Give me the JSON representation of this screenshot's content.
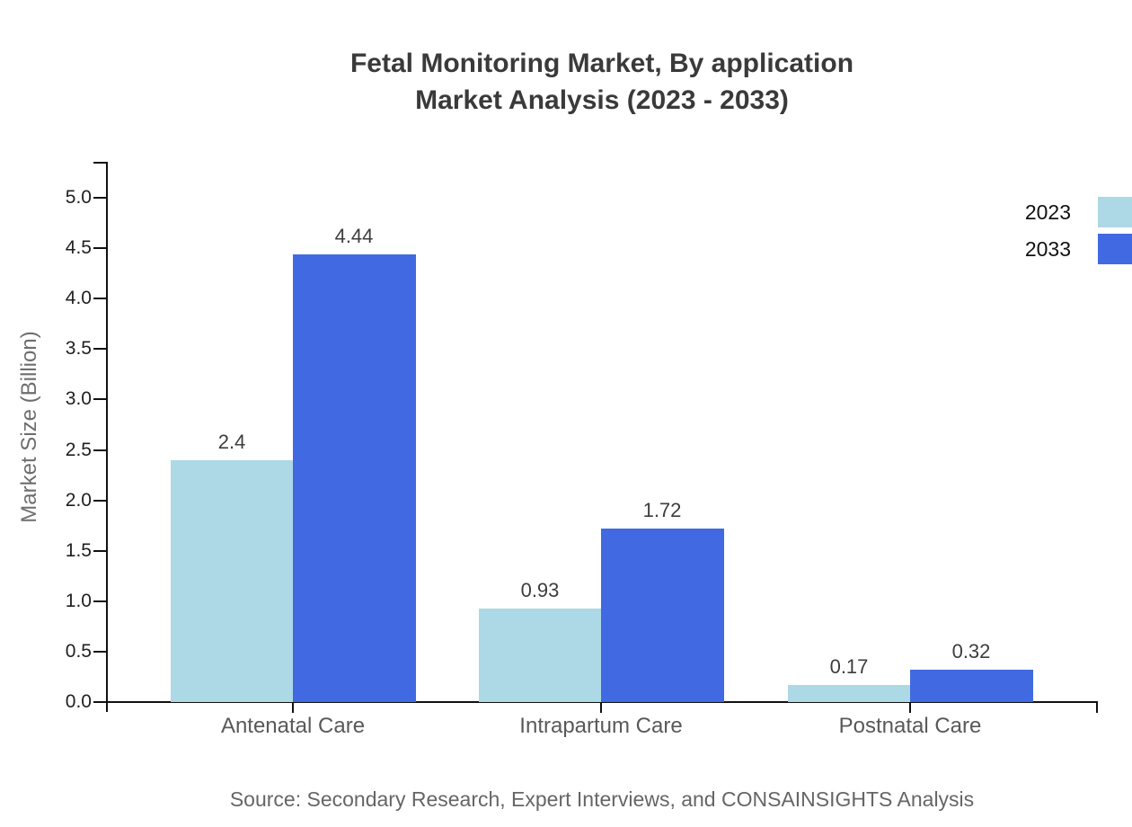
{
  "title": {
    "line1": "Fetal Monitoring Market, By application",
    "line2": "Market Analysis (2023 - 2033)"
  },
  "y_axis": {
    "label": "Market Size (Billion)"
  },
  "source": "Source: Secondary Research, Expert Interviews, and CONSAINSIGHTS Analysis",
  "legend": {
    "items": [
      {
        "label": "2023",
        "color": "#ADD8E6"
      },
      {
        "label": "2033",
        "color": "#4169E1"
      }
    ]
  },
  "chart_data": {
    "type": "bar",
    "title": "Fetal Monitoring Market, By application Market Analysis (2023 - 2033)",
    "categories": [
      "Antenatal Care",
      "Intrapartum Care",
      "Postnatal Care"
    ],
    "series": [
      {
        "name": "2023",
        "color": "#ADD8E6",
        "values": [
          2.4,
          0.93,
          0.17
        ],
        "labels": [
          "2.4",
          "0.93",
          "0.17"
        ]
      },
      {
        "name": "2033",
        "color": "#4169E1",
        "values": [
          4.44,
          1.72,
          0.32
        ],
        "labels": [
          "4.44",
          "1.72",
          "0.32"
        ]
      }
    ],
    "xlabel": "",
    "ylabel": "Market Size (Billion)",
    "ylim": [
      0,
      5.35
    ],
    "ytick_values": [
      0,
      0.5,
      1,
      1.5,
      2,
      2.5,
      3,
      3.5,
      4,
      4.5,
      5
    ],
    "ytick_labels": [
      "0.0",
      "0.5",
      "1.0",
      "1.5",
      "2.0",
      "2.5",
      "3.0",
      "3.5",
      "4.0",
      "4.5",
      "5.0"
    ],
    "grid": false,
    "legend_position": "top-right",
    "bar_value_labels": true
  }
}
